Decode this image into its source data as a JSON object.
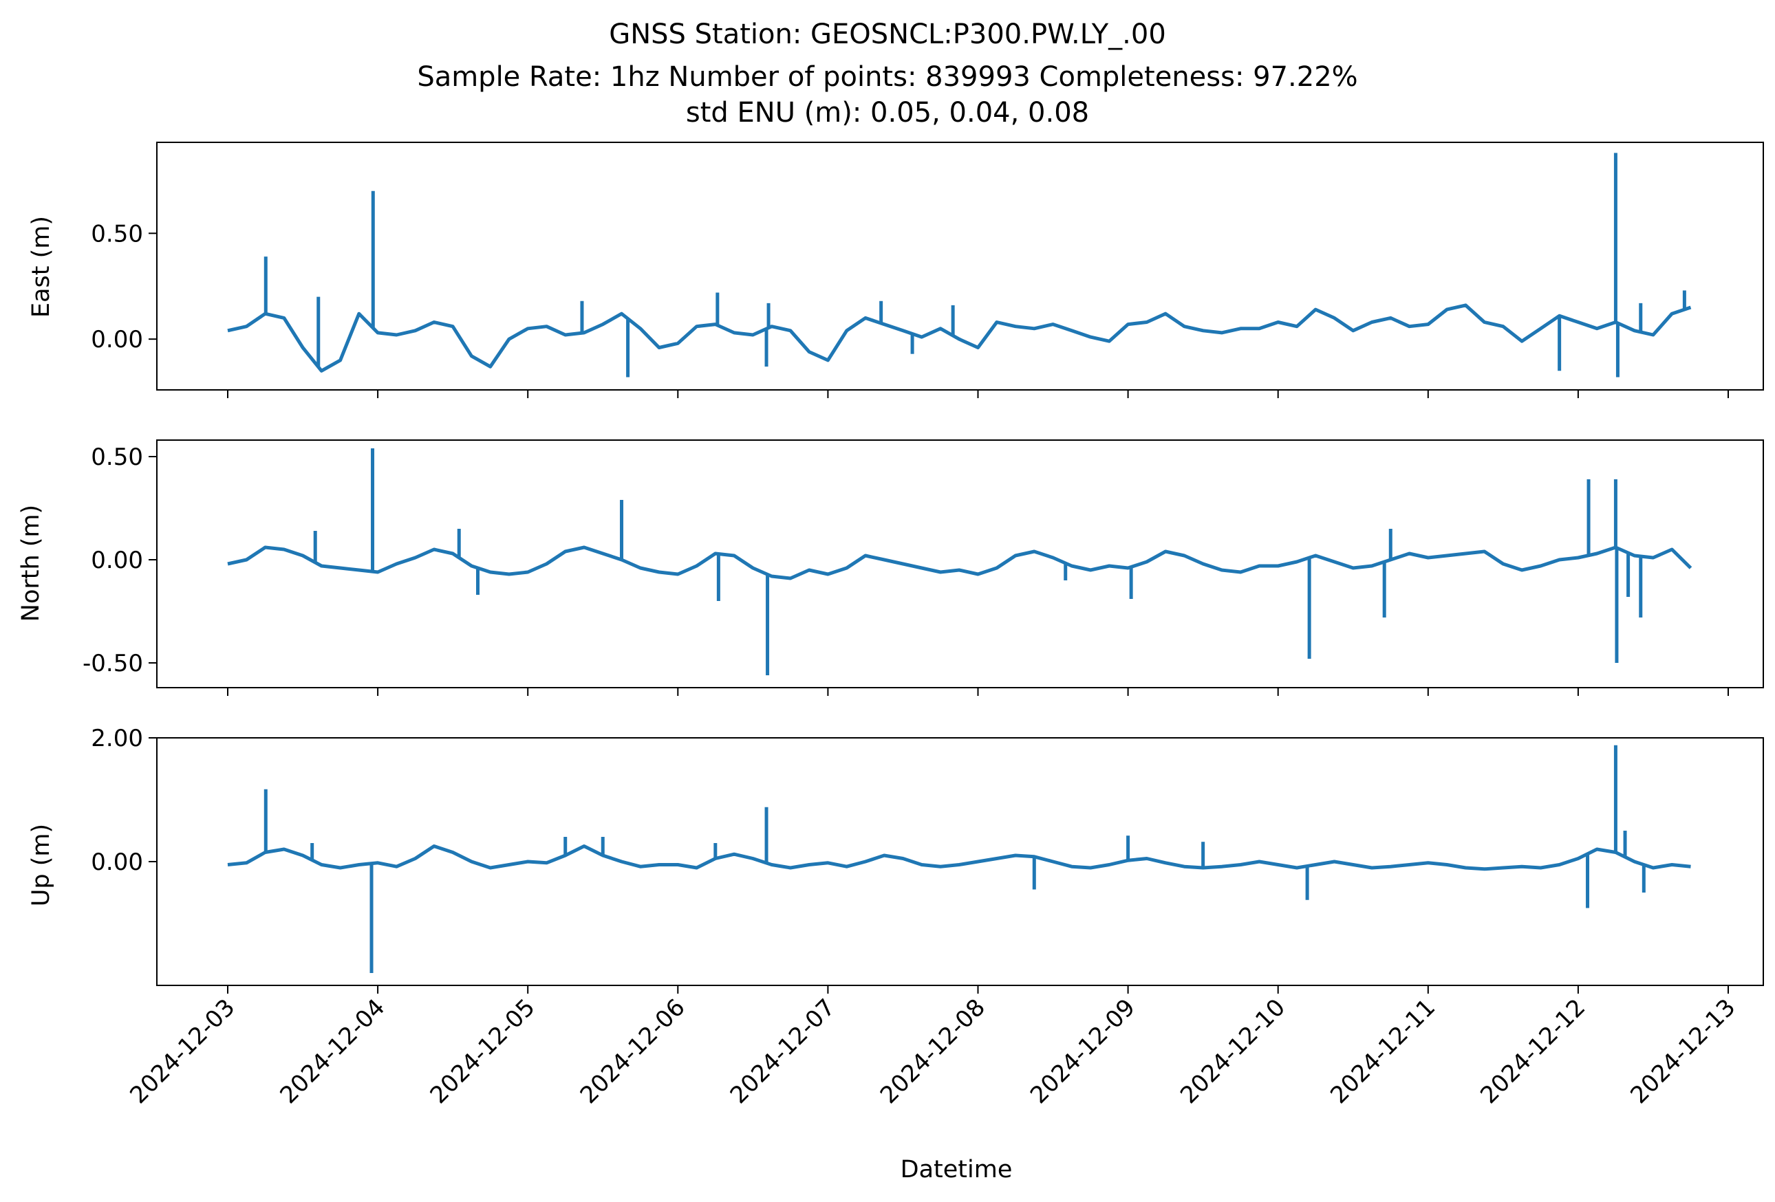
{
  "figure": {
    "title_lines": [
      "GNSS Station: GEOSNCL:P300.PW.LY_.00",
      "Sample Rate: 1hz   Number of points: 839993    Completeness:  97.22%",
      "std ENU (m):  0.05, 0.04, 0.08"
    ],
    "line_color": "#1f77b4"
  },
  "chart_data": [
    {
      "type": "line",
      "name": "east",
      "ylabel": "East (m)",
      "xlabel": "",
      "x_range": [
        "2024-12-03",
        "2024-12-13"
      ],
      "ylim": [
        -0.24,
        0.93
      ],
      "y_ticks": [
        0.0,
        0.5
      ],
      "y_tick_labels": [
        "0.00",
        "0.50"
      ],
      "x_ticks": [
        "2024-12-03",
        "2024-12-04",
        "2024-12-05",
        "2024-12-06",
        "2024-12-07",
        "2024-12-08",
        "2024-12-09",
        "2024-12-10",
        "2024-12-11",
        "2024-12-12",
        "2024-12-13"
      ],
      "x_tick_labels": [],
      "grid": false,
      "series": [
        {
          "x": [
            "2024-12-03 00:00",
            "2024-12-03 03:00",
            "2024-12-03 06:00",
            "2024-12-03 09:00",
            "2024-12-03 12:00",
            "2024-12-03 15:00",
            "2024-12-03 18:00",
            "2024-12-03 21:00",
            "2024-12-04 00:00",
            "2024-12-04 03:00",
            "2024-12-04 06:00",
            "2024-12-04 09:00",
            "2024-12-04 12:00",
            "2024-12-04 15:00",
            "2024-12-04 18:00",
            "2024-12-04 21:00",
            "2024-12-05 00:00",
            "2024-12-05 03:00",
            "2024-12-05 06:00",
            "2024-12-05 09:00",
            "2024-12-05 12:00",
            "2024-12-05 15:00",
            "2024-12-05 18:00",
            "2024-12-05 21:00",
            "2024-12-06 00:00",
            "2024-12-06 03:00",
            "2024-12-06 06:00",
            "2024-12-06 09:00",
            "2024-12-06 12:00",
            "2024-12-06 15:00",
            "2024-12-06 18:00",
            "2024-12-06 21:00",
            "2024-12-07 00:00",
            "2024-12-07 03:00",
            "2024-12-07 06:00",
            "2024-12-07 09:00",
            "2024-12-07 12:00",
            "2024-12-07 15:00",
            "2024-12-07 18:00",
            "2024-12-07 21:00",
            "2024-12-08 00:00",
            "2024-12-08 03:00",
            "2024-12-08 06:00",
            "2024-12-08 09:00",
            "2024-12-08 12:00",
            "2024-12-08 15:00",
            "2024-12-08 18:00",
            "2024-12-08 21:00",
            "2024-12-09 00:00",
            "2024-12-09 03:00",
            "2024-12-09 06:00",
            "2024-12-09 09:00",
            "2024-12-09 12:00",
            "2024-12-09 15:00",
            "2024-12-09 18:00",
            "2024-12-09 21:00",
            "2024-12-10 00:00",
            "2024-12-10 03:00",
            "2024-12-10 06:00",
            "2024-12-10 09:00",
            "2024-12-10 12:00",
            "2024-12-10 15:00",
            "2024-12-10 18:00",
            "2024-12-10 21:00",
            "2024-12-11 00:00",
            "2024-12-11 03:00",
            "2024-12-11 06:00",
            "2024-12-11 09:00",
            "2024-12-11 12:00",
            "2024-12-11 15:00",
            "2024-12-11 18:00",
            "2024-12-11 21:00",
            "2024-12-12 00:00",
            "2024-12-12 03:00",
            "2024-12-12 06:00",
            "2024-12-12 09:00",
            "2024-12-12 12:00",
            "2024-12-12 15:00",
            "2024-12-12 18:00"
          ],
          "y": [
            0.04,
            0.06,
            0.12,
            0.1,
            -0.04,
            -0.15,
            -0.1,
            0.12,
            0.03,
            0.02,
            0.04,
            0.08,
            0.06,
            -0.08,
            -0.13,
            0.0,
            0.05,
            0.06,
            0.02,
            0.03,
            0.07,
            0.12,
            0.05,
            -0.04,
            -0.02,
            0.06,
            0.07,
            0.03,
            0.02,
            0.06,
            0.04,
            -0.06,
            -0.1,
            0.04,
            0.1,
            0.07,
            0.04,
            0.01,
            0.05,
            0.0,
            -0.04,
            0.08,
            0.06,
            0.05,
            0.07,
            0.04,
            0.01,
            -0.01,
            0.07,
            0.08,
            0.12,
            0.06,
            0.04,
            0.03,
            0.05,
            0.05,
            0.08,
            0.06,
            0.14,
            0.1,
            0.04,
            0.08,
            0.1,
            0.06,
            0.07,
            0.14,
            0.16,
            0.08,
            0.06,
            -0.01,
            0.05,
            0.11,
            0.08,
            0.05,
            0.08,
            0.04,
            0.02,
            0.12,
            0.15
          ]
        }
      ],
      "spikes": [
        {
          "x": "2024-12-03 06:05",
          "y": 0.39
        },
        {
          "x": "2024-12-03 14:30",
          "y": 0.2
        },
        {
          "x": "2024-12-03 23:15",
          "y": 0.7
        },
        {
          "x": "2024-12-05 08:40",
          "y": 0.18
        },
        {
          "x": "2024-12-05 16:00",
          "y": -0.18
        },
        {
          "x": "2024-12-06 06:20",
          "y": 0.22
        },
        {
          "x": "2024-12-06 14:10",
          "y": -0.13
        },
        {
          "x": "2024-12-06 14:30",
          "y": 0.17
        },
        {
          "x": "2024-12-07 08:30",
          "y": 0.18
        },
        {
          "x": "2024-12-07 13:30",
          "y": -0.07
        },
        {
          "x": "2024-12-07 20:00",
          "y": 0.16
        },
        {
          "x": "2024-12-11 21:00",
          "y": -0.15
        },
        {
          "x": "2024-12-12 06:00",
          "y": 0.88
        },
        {
          "x": "2024-12-12 06:20",
          "y": -0.18
        },
        {
          "x": "2024-12-12 10:00",
          "y": 0.17
        },
        {
          "x": "2024-12-12 17:00",
          "y": 0.23
        }
      ]
    },
    {
      "type": "line",
      "name": "north",
      "ylabel": "North (m)",
      "xlabel": "",
      "x_range": [
        "2024-12-03",
        "2024-12-13"
      ],
      "ylim": [
        -0.62,
        0.58
      ],
      "y_ticks": [
        -0.5,
        0.0,
        0.5
      ],
      "y_tick_labels": [
        "-0.50",
        "0.00",
        "0.50"
      ],
      "x_ticks": [
        "2024-12-03",
        "2024-12-04",
        "2024-12-05",
        "2024-12-06",
        "2024-12-07",
        "2024-12-08",
        "2024-12-09",
        "2024-12-10",
        "2024-12-11",
        "2024-12-12",
        "2024-12-13"
      ],
      "x_tick_labels": [],
      "grid": false,
      "series": [
        {
          "x": [
            "2024-12-03 00:00",
            "2024-12-03 03:00",
            "2024-12-03 06:00",
            "2024-12-03 09:00",
            "2024-12-03 12:00",
            "2024-12-03 15:00",
            "2024-12-03 18:00",
            "2024-12-03 21:00",
            "2024-12-04 00:00",
            "2024-12-04 03:00",
            "2024-12-04 06:00",
            "2024-12-04 09:00",
            "2024-12-04 12:00",
            "2024-12-04 15:00",
            "2024-12-04 18:00",
            "2024-12-04 21:00",
            "2024-12-05 00:00",
            "2024-12-05 03:00",
            "2024-12-05 06:00",
            "2024-12-05 09:00",
            "2024-12-05 12:00",
            "2024-12-05 15:00",
            "2024-12-05 18:00",
            "2024-12-05 21:00",
            "2024-12-06 00:00",
            "2024-12-06 03:00",
            "2024-12-06 06:00",
            "2024-12-06 09:00",
            "2024-12-06 12:00",
            "2024-12-06 15:00",
            "2024-12-06 18:00",
            "2024-12-06 21:00",
            "2024-12-07 00:00",
            "2024-12-07 03:00",
            "2024-12-07 06:00",
            "2024-12-07 09:00",
            "2024-12-07 12:00",
            "2024-12-07 15:00",
            "2024-12-07 18:00",
            "2024-12-07 21:00",
            "2024-12-08 00:00",
            "2024-12-08 03:00",
            "2024-12-08 06:00",
            "2024-12-08 09:00",
            "2024-12-08 12:00",
            "2024-12-08 15:00",
            "2024-12-08 18:00",
            "2024-12-08 21:00",
            "2024-12-09 00:00",
            "2024-12-09 03:00",
            "2024-12-09 06:00",
            "2024-12-09 09:00",
            "2024-12-09 12:00",
            "2024-12-09 15:00",
            "2024-12-09 18:00",
            "2024-12-09 21:00",
            "2024-12-10 00:00",
            "2024-12-10 03:00",
            "2024-12-10 06:00",
            "2024-12-10 09:00",
            "2024-12-10 12:00",
            "2024-12-10 15:00",
            "2024-12-10 18:00",
            "2024-12-10 21:00",
            "2024-12-11 00:00",
            "2024-12-11 03:00",
            "2024-12-11 06:00",
            "2024-12-11 09:00",
            "2024-12-11 12:00",
            "2024-12-11 15:00",
            "2024-12-11 18:00",
            "2024-12-11 21:00",
            "2024-12-12 00:00",
            "2024-12-12 03:00",
            "2024-12-12 06:00",
            "2024-12-12 09:00",
            "2024-12-12 12:00",
            "2024-12-12 15:00",
            "2024-12-12 18:00"
          ],
          "y": [
            -0.02,
            0.0,
            0.06,
            0.05,
            0.02,
            -0.03,
            -0.04,
            -0.05,
            -0.06,
            -0.02,
            0.01,
            0.05,
            0.03,
            -0.03,
            -0.06,
            -0.07,
            -0.06,
            -0.02,
            0.04,
            0.06,
            0.03,
            0.0,
            -0.04,
            -0.06,
            -0.07,
            -0.03,
            0.03,
            0.02,
            -0.04,
            -0.08,
            -0.09,
            -0.05,
            -0.07,
            -0.04,
            0.02,
            0.0,
            -0.02,
            -0.04,
            -0.06,
            -0.05,
            -0.07,
            -0.04,
            0.02,
            0.04,
            0.01,
            -0.03,
            -0.05,
            -0.03,
            -0.04,
            -0.01,
            0.04,
            0.02,
            -0.02,
            -0.05,
            -0.06,
            -0.03,
            -0.03,
            -0.01,
            0.02,
            -0.01,
            -0.04,
            -0.03,
            0.0,
            0.03,
            0.01,
            0.02,
            0.03,
            0.04,
            -0.02,
            -0.05,
            -0.03,
            0.0,
            0.01,
            0.03,
            0.06,
            0.02,
            0.01,
            0.05,
            -0.04
          ]
        }
      ],
      "spikes": [
        {
          "x": "2024-12-03 14:00",
          "y": 0.14
        },
        {
          "x": "2024-12-03 23:10",
          "y": 0.54
        },
        {
          "x": "2024-12-04 13:00",
          "y": 0.15
        },
        {
          "x": "2024-12-04 16:00",
          "y": -0.17
        },
        {
          "x": "2024-12-05 15:00",
          "y": 0.29
        },
        {
          "x": "2024-12-06 06:30",
          "y": -0.2
        },
        {
          "x": "2024-12-06 14:20",
          "y": -0.56
        },
        {
          "x": "2024-12-08 14:00",
          "y": -0.1
        },
        {
          "x": "2024-12-09 00:30",
          "y": -0.19
        },
        {
          "x": "2024-12-10 05:00",
          "y": -0.48
        },
        {
          "x": "2024-12-10 17:00",
          "y": -0.28
        },
        {
          "x": "2024-12-10 18:00",
          "y": 0.15
        },
        {
          "x": "2024-12-12 01:40",
          "y": 0.39
        },
        {
          "x": "2024-12-12 06:00",
          "y": 0.39
        },
        {
          "x": "2024-12-12 06:10",
          "y": -0.5
        },
        {
          "x": "2024-12-12 08:00",
          "y": -0.18
        },
        {
          "x": "2024-12-12 10:00",
          "y": -0.28
        }
      ]
    },
    {
      "type": "line",
      "name": "up",
      "ylabel": "Up (m)",
      "xlabel": "Datetime",
      "x_range": [
        "2024-12-03",
        "2024-12-13"
      ],
      "ylim": [
        -2.0,
        2.0
      ],
      "y_ticks": [
        0.0,
        2.0
      ],
      "y_tick_labels": [
        "0.00",
        "2.00"
      ],
      "x_ticks": [
        "2024-12-03",
        "2024-12-04",
        "2024-12-05",
        "2024-12-06",
        "2024-12-07",
        "2024-12-08",
        "2024-12-09",
        "2024-12-10",
        "2024-12-11",
        "2024-12-12",
        "2024-12-13"
      ],
      "x_tick_labels": [
        "2024-12-03",
        "2024-12-04",
        "2024-12-05",
        "2024-12-06",
        "2024-12-07",
        "2024-12-08",
        "2024-12-09",
        "2024-12-10",
        "2024-12-11",
        "2024-12-12",
        "2024-12-13"
      ],
      "grid": false,
      "series": [
        {
          "x": [
            "2024-12-03 00:00",
            "2024-12-03 03:00",
            "2024-12-03 06:00",
            "2024-12-03 09:00",
            "2024-12-03 12:00",
            "2024-12-03 15:00",
            "2024-12-03 18:00",
            "2024-12-03 21:00",
            "2024-12-04 00:00",
            "2024-12-04 03:00",
            "2024-12-04 06:00",
            "2024-12-04 09:00",
            "2024-12-04 12:00",
            "2024-12-04 15:00",
            "2024-12-04 18:00",
            "2024-12-04 21:00",
            "2024-12-05 00:00",
            "2024-12-05 03:00",
            "2024-12-05 06:00",
            "2024-12-05 09:00",
            "2024-12-05 12:00",
            "2024-12-05 15:00",
            "2024-12-05 18:00",
            "2024-12-05 21:00",
            "2024-12-06 00:00",
            "2024-12-06 03:00",
            "2024-12-06 06:00",
            "2024-12-06 09:00",
            "2024-12-06 12:00",
            "2024-12-06 15:00",
            "2024-12-06 18:00",
            "2024-12-06 21:00",
            "2024-12-07 00:00",
            "2024-12-07 03:00",
            "2024-12-07 06:00",
            "2024-12-07 09:00",
            "2024-12-07 12:00",
            "2024-12-07 15:00",
            "2024-12-07 18:00",
            "2024-12-07 21:00",
            "2024-12-08 00:00",
            "2024-12-08 03:00",
            "2024-12-08 06:00",
            "2024-12-08 09:00",
            "2024-12-08 12:00",
            "2024-12-08 15:00",
            "2024-12-08 18:00",
            "2024-12-08 21:00",
            "2024-12-09 00:00",
            "2024-12-09 03:00",
            "2024-12-09 06:00",
            "2024-12-09 09:00",
            "2024-12-09 12:00",
            "2024-12-09 15:00",
            "2024-12-09 18:00",
            "2024-12-09 21:00",
            "2024-12-10 00:00",
            "2024-12-10 03:00",
            "2024-12-10 06:00",
            "2024-12-10 09:00",
            "2024-12-10 12:00",
            "2024-12-10 15:00",
            "2024-12-10 18:00",
            "2024-12-10 21:00",
            "2024-12-11 00:00",
            "2024-12-11 03:00",
            "2024-12-11 06:00",
            "2024-12-11 09:00",
            "2024-12-11 12:00",
            "2024-12-11 15:00",
            "2024-12-11 18:00",
            "2024-12-11 21:00",
            "2024-12-12 00:00",
            "2024-12-12 03:00",
            "2024-12-12 06:00",
            "2024-12-12 09:00",
            "2024-12-12 12:00",
            "2024-12-12 15:00",
            "2024-12-12 18:00"
          ],
          "y": [
            -0.05,
            -0.02,
            0.15,
            0.2,
            0.1,
            -0.05,
            -0.1,
            -0.05,
            -0.02,
            -0.08,
            0.05,
            0.25,
            0.15,
            0.0,
            -0.1,
            -0.05,
            0.0,
            -0.02,
            0.1,
            0.25,
            0.1,
            0.0,
            -0.08,
            -0.05,
            -0.05,
            -0.1,
            0.05,
            0.12,
            0.05,
            -0.05,
            -0.1,
            -0.05,
            -0.02,
            -0.08,
            0.0,
            0.1,
            0.05,
            -0.05,
            -0.08,
            -0.05,
            0.0,
            0.05,
            0.1,
            0.08,
            0.0,
            -0.08,
            -0.1,
            -0.05,
            0.02,
            0.05,
            -0.02,
            -0.08,
            -0.1,
            -0.08,
            -0.05,
            0.0,
            -0.05,
            -0.1,
            -0.05,
            0.0,
            -0.05,
            -0.1,
            -0.08,
            -0.05,
            -0.02,
            -0.05,
            -0.1,
            -0.12,
            -0.1,
            -0.08,
            -0.1,
            -0.05,
            0.05,
            0.2,
            0.15,
            0.0,
            -0.1,
            -0.05,
            -0.08
          ]
        }
      ],
      "spikes": [
        {
          "x": "2024-12-03 06:05",
          "y": 1.17
        },
        {
          "x": "2024-12-03 13:30",
          "y": 0.3
        },
        {
          "x": "2024-12-03 23:00",
          "y": -1.8
        },
        {
          "x": "2024-12-05 06:00",
          "y": 0.4
        },
        {
          "x": "2024-12-05 12:00",
          "y": 0.4
        },
        {
          "x": "2024-12-06 06:00",
          "y": 0.3
        },
        {
          "x": "2024-12-06 14:10",
          "y": 0.88
        },
        {
          "x": "2024-12-08 09:00",
          "y": -0.45
        },
        {
          "x": "2024-12-09 00:00",
          "y": 0.42
        },
        {
          "x": "2024-12-09 12:00",
          "y": 0.32
        },
        {
          "x": "2024-12-10 04:40",
          "y": -0.62
        },
        {
          "x": "2024-12-12 01:30",
          "y": -0.75
        },
        {
          "x": "2024-12-12 06:00",
          "y": 1.88
        },
        {
          "x": "2024-12-12 07:30",
          "y": 0.5
        },
        {
          "x": "2024-12-12 10:30",
          "y": -0.5
        }
      ]
    }
  ]
}
